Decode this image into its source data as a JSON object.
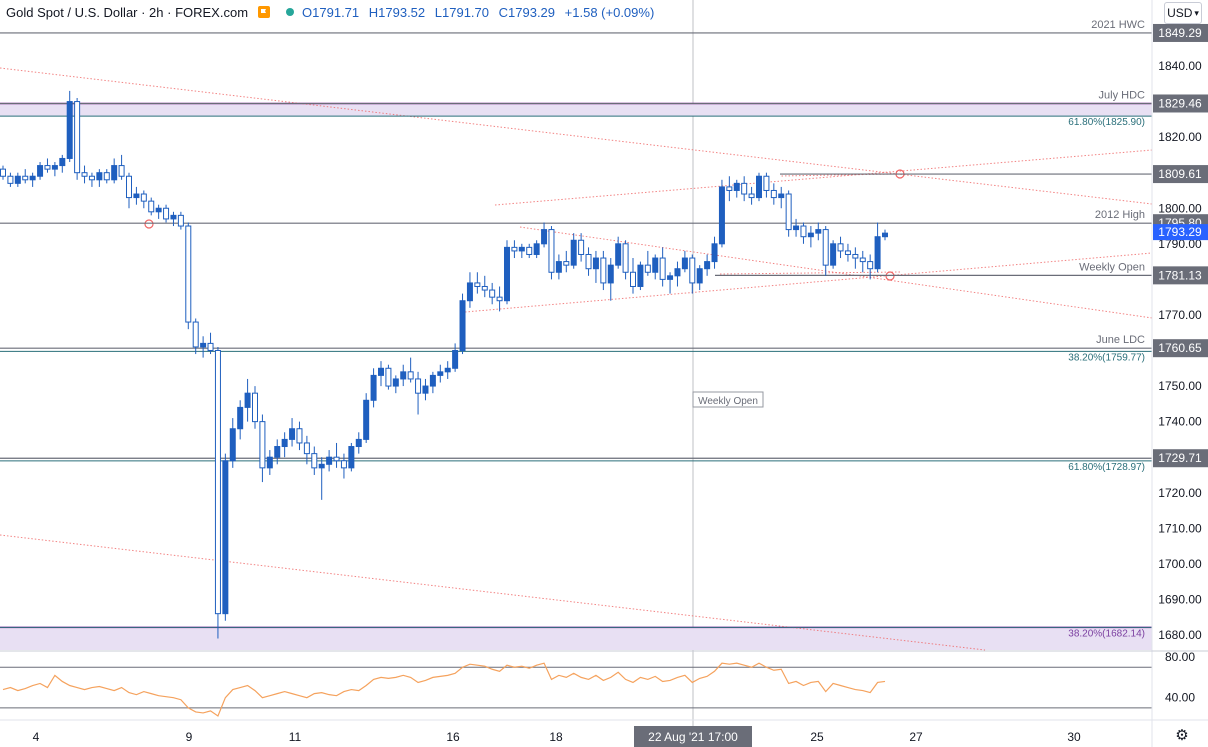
{
  "header": {
    "symbol": "Gold Spot / U.S. Dollar · 2h · FOREX.com",
    "open": "O1791.71",
    "high": "H1793.52",
    "low": "L1791.70",
    "close": "C1793.29",
    "change": "+1.58 (+0.09%)"
  },
  "currency_button": "USD",
  "icons": {
    "settings": "gear-icon",
    "flag": "flag-icon",
    "status": "status-dot-icon",
    "dropdown": "chevron-down-icon"
  },
  "colors": {
    "up": "#1f5fbf",
    "down": "#1f5fbf",
    "rsi": "#f5a25d",
    "horizontal": "#787b86",
    "trend": "#f06565",
    "zone": "#9c27b0"
  },
  "chart_data": {
    "type": "candlestick",
    "ylim": [
      1673,
      1853
    ],
    "y_ticks": [
      "1840.00",
      "1830.00",
      "1820.00",
      "1810.00",
      "1800.00",
      "1790.00",
      "1780.00",
      "1770.00",
      "1760.00",
      "1750.00",
      "1740.00",
      "1730.00",
      "1720.00",
      "1710.00",
      "1700.00",
      "1690.00",
      "1680.00"
    ],
    "x_ticks": [
      "4",
      "9",
      "11",
      "16",
      "18",
      "22 Aug '21",
      "25",
      "27",
      "30"
    ],
    "crosshair_x_label": "22 Aug '21   17:00",
    "levels": [
      {
        "price": 1849.29,
        "label": "2021 HWC",
        "tag": "1849.29"
      },
      {
        "price": 1829.46,
        "label": "July HDC",
        "tag": "1829.46"
      },
      {
        "price": 1825.9,
        "label": "61.80%(1825.90)",
        "tag": ""
      },
      {
        "price": 1809.61,
        "label": "",
        "tag": "1809.61"
      },
      {
        "price": 1795.8,
        "label": "2012 High",
        "tag": "1795.80"
      },
      {
        "price": 1781.13,
        "label": "Weekly Open",
        "tag": "1781.13"
      },
      {
        "price": 1760.65,
        "label": "June LDC",
        "tag": "1760.65"
      },
      {
        "price": 1759.77,
        "label": "38.20%(1759.77)",
        "tag": ""
      },
      {
        "price": 1729.71,
        "label": "",
        "tag": "1729.71"
      },
      {
        "price": 1728.97,
        "label": "61.80%(1728.97)",
        "tag": ""
      },
      {
        "price": 1682.14,
        "label": "38.20%(1682.14)",
        "tag": ""
      }
    ],
    "zones": [
      {
        "from": 1825.9,
        "to": 1829.46
      },
      {
        "from": 1673,
        "to": 1682.14
      }
    ],
    "current_price": 1793.29,
    "annotation": "Weekly Open",
    "candles": [
      [
        1811,
        1812,
        1808,
        1809
      ],
      [
        1809,
        1810,
        1806,
        1807
      ],
      [
        1807,
        1810,
        1806,
        1809
      ],
      [
        1809,
        1811,
        1807,
        1808
      ],
      [
        1808,
        1810,
        1806,
        1809
      ],
      [
        1809,
        1813,
        1808,
        1812
      ],
      [
        1812,
        1814,
        1810,
        1811
      ],
      [
        1811,
        1813,
        1809,
        1812
      ],
      [
        1812,
        1815,
        1810,
        1814
      ],
      [
        1814,
        1833,
        1813,
        1830
      ],
      [
        1830,
        1831,
        1808,
        1810
      ],
      [
        1810,
        1812,
        1807,
        1809
      ],
      [
        1809,
        1810,
        1806,
        1808
      ],
      [
        1808,
        1811,
        1806,
        1810
      ],
      [
        1810,
        1811,
        1807,
        1808
      ],
      [
        1808,
        1814,
        1807,
        1812
      ],
      [
        1812,
        1815,
        1808,
        1809
      ],
      [
        1809,
        1810,
        1800,
        1803
      ],
      [
        1803,
        1806,
        1801,
        1804
      ],
      [
        1804,
        1805,
        1800,
        1802
      ],
      [
        1802,
        1803,
        1798,
        1799
      ],
      [
        1799,
        1801,
        1797,
        1800
      ],
      [
        1800,
        1801,
        1796,
        1797
      ],
      [
        1797,
        1799,
        1795,
        1798
      ],
      [
        1798,
        1799,
        1794,
        1795
      ],
      [
        1795,
        1796,
        1766,
        1768
      ],
      [
        1768,
        1769,
        1759,
        1761
      ],
      [
        1761,
        1764,
        1758,
        1762
      ],
      [
        1762,
        1765,
        1759,
        1760
      ],
      [
        1760,
        1761,
        1679,
        1686
      ],
      [
        1686,
        1731,
        1684,
        1729
      ],
      [
        1729,
        1741,
        1727,
        1738
      ],
      [
        1738,
        1746,
        1735,
        1744
      ],
      [
        1744,
        1752,
        1740,
        1748
      ],
      [
        1748,
        1750,
        1738,
        1740
      ],
      [
        1740,
        1742,
        1723,
        1727
      ],
      [
        1727,
        1732,
        1725,
        1730
      ],
      [
        1730,
        1735,
        1728,
        1733
      ],
      [
        1733,
        1737,
        1730,
        1735
      ],
      [
        1735,
        1741,
        1733,
        1738
      ],
      [
        1738,
        1740,
        1732,
        1734
      ],
      [
        1734,
        1736,
        1728,
        1731
      ],
      [
        1731,
        1733,
        1725,
        1727
      ],
      [
        1727,
        1730,
        1718,
        1728
      ],
      [
        1728,
        1732,
        1726,
        1730
      ],
      [
        1730,
        1734,
        1727,
        1729
      ],
      [
        1729,
        1731,
        1724,
        1727
      ],
      [
        1727,
        1734,
        1726,
        1733
      ],
      [
        1733,
        1737,
        1731,
        1735
      ],
      [
        1735,
        1748,
        1734,
        1746
      ],
      [
        1746,
        1755,
        1744,
        1753
      ],
      [
        1753,
        1757,
        1750,
        1755
      ],
      [
        1755,
        1756,
        1749,
        1750
      ],
      [
        1750,
        1753,
        1748,
        1752
      ],
      [
        1752,
        1756,
        1750,
        1754
      ],
      [
        1754,
        1758,
        1751,
        1752
      ],
      [
        1752,
        1754,
        1742,
        1748
      ],
      [
        1748,
        1752,
        1746,
        1750
      ],
      [
        1750,
        1754,
        1748,
        1753
      ],
      [
        1753,
        1756,
        1751,
        1754
      ],
      [
        1754,
        1757,
        1752,
        1755
      ],
      [
        1755,
        1762,
        1754,
        1760
      ],
      [
        1760,
        1776,
        1759,
        1774
      ],
      [
        1774,
        1782,
        1772,
        1779
      ],
      [
        1779,
        1782,
        1776,
        1778
      ],
      [
        1778,
        1781,
        1775,
        1777
      ],
      [
        1777,
        1779,
        1773,
        1775
      ],
      [
        1775,
        1778,
        1771,
        1774
      ],
      [
        1774,
        1791,
        1773,
        1789
      ],
      [
        1789,
        1791,
        1786,
        1788
      ],
      [
        1788,
        1790,
        1786,
        1789
      ],
      [
        1789,
        1790,
        1786,
        1787
      ],
      [
        1787,
        1791,
        1786,
        1790
      ],
      [
        1790,
        1796,
        1789,
        1794
      ],
      [
        1794,
        1795,
        1780,
        1782
      ],
      [
        1782,
        1787,
        1780,
        1785
      ],
      [
        1785,
        1788,
        1782,
        1784
      ],
      [
        1784,
        1793,
        1783,
        1791
      ],
      [
        1791,
        1793,
        1785,
        1787
      ],
      [
        1787,
        1789,
        1781,
        1783
      ],
      [
        1783,
        1788,
        1779,
        1786
      ],
      [
        1786,
        1788,
        1777,
        1779
      ],
      [
        1779,
        1786,
        1774,
        1784
      ],
      [
        1784,
        1792,
        1783,
        1790
      ],
      [
        1790,
        1791,
        1780,
        1782
      ],
      [
        1782,
        1786,
        1776,
        1778
      ],
      [
        1778,
        1785,
        1777,
        1784
      ],
      [
        1784,
        1788,
        1781,
        1782
      ],
      [
        1782,
        1787,
        1780,
        1786
      ],
      [
        1786,
        1789,
        1778,
        1780
      ],
      [
        1780,
        1782,
        1776,
        1781
      ],
      [
        1781,
        1785,
        1778,
        1783
      ],
      [
        1783,
        1788,
        1782,
        1786
      ],
      [
        1786,
        1787,
        1776,
        1779
      ],
      [
        1779,
        1784,
        1777,
        1783
      ],
      [
        1783,
        1787,
        1781,
        1785
      ],
      [
        1785,
        1792,
        1783,
        1790
      ],
      [
        1790,
        1808,
        1789,
        1806
      ],
      [
        1806,
        1809,
        1802,
        1805
      ],
      [
        1805,
        1808,
        1803,
        1807
      ],
      [
        1807,
        1809,
        1802,
        1804
      ],
      [
        1804,
        1806,
        1801,
        1803
      ],
      [
        1803,
        1810,
        1802,
        1809
      ],
      [
        1809,
        1810,
        1803,
        1805
      ],
      [
        1805,
        1807,
        1801,
        1803
      ],
      [
        1803,
        1806,
        1800,
        1804
      ],
      [
        1804,
        1805,
        1792,
        1794
      ],
      [
        1794,
        1797,
        1792,
        1795
      ],
      [
        1795,
        1796,
        1790,
        1792
      ],
      [
        1792,
        1795,
        1789,
        1793
      ],
      [
        1793,
        1796,
        1791,
        1794
      ],
      [
        1794,
        1795,
        1781,
        1784
      ],
      [
        1784,
        1791,
        1783,
        1790
      ],
      [
        1790,
        1792,
        1786,
        1788
      ],
      [
        1788,
        1790,
        1785,
        1787
      ],
      [
        1787,
        1789,
        1783,
        1786
      ],
      [
        1786,
        1788,
        1782,
        1785
      ],
      [
        1785,
        1787,
        1780,
        1783
      ],
      [
        1783,
        1796,
        1782,
        1792
      ],
      [
        1792,
        1794,
        1791,
        1793
      ]
    ],
    "rsi": {
      "y_ticks": [
        "80.00",
        "40.00"
      ],
      "ylim": [
        20,
        85
      ],
      "levels": [
        70,
        30
      ],
      "values": [
        48,
        50,
        47,
        49,
        52,
        54,
        50,
        62,
        56,
        52,
        50,
        48,
        50,
        51,
        49,
        47,
        50,
        45,
        43,
        46,
        44,
        42,
        41,
        40,
        38,
        30,
        26,
        25,
        27,
        22,
        40,
        48,
        50,
        52,
        47,
        40,
        42,
        44,
        46,
        44,
        42,
        40,
        44,
        45,
        43,
        42,
        46,
        48,
        47,
        52,
        58,
        60,
        59,
        60,
        62,
        60,
        55,
        57,
        60,
        61,
        62,
        64,
        70,
        73,
        72,
        71,
        68,
        66,
        72,
        70,
        71,
        69,
        72,
        74,
        58,
        62,
        60,
        64,
        60,
        58,
        62,
        57,
        60,
        65,
        58,
        55,
        60,
        58,
        61,
        56,
        57,
        60,
        62,
        55,
        59,
        61,
        66,
        74,
        73,
        74,
        72,
        70,
        74,
        70,
        67,
        68,
        54,
        56,
        52,
        55,
        56,
        46,
        54,
        52,
        50,
        48,
        47,
        45,
        55,
        56
      ]
    }
  }
}
